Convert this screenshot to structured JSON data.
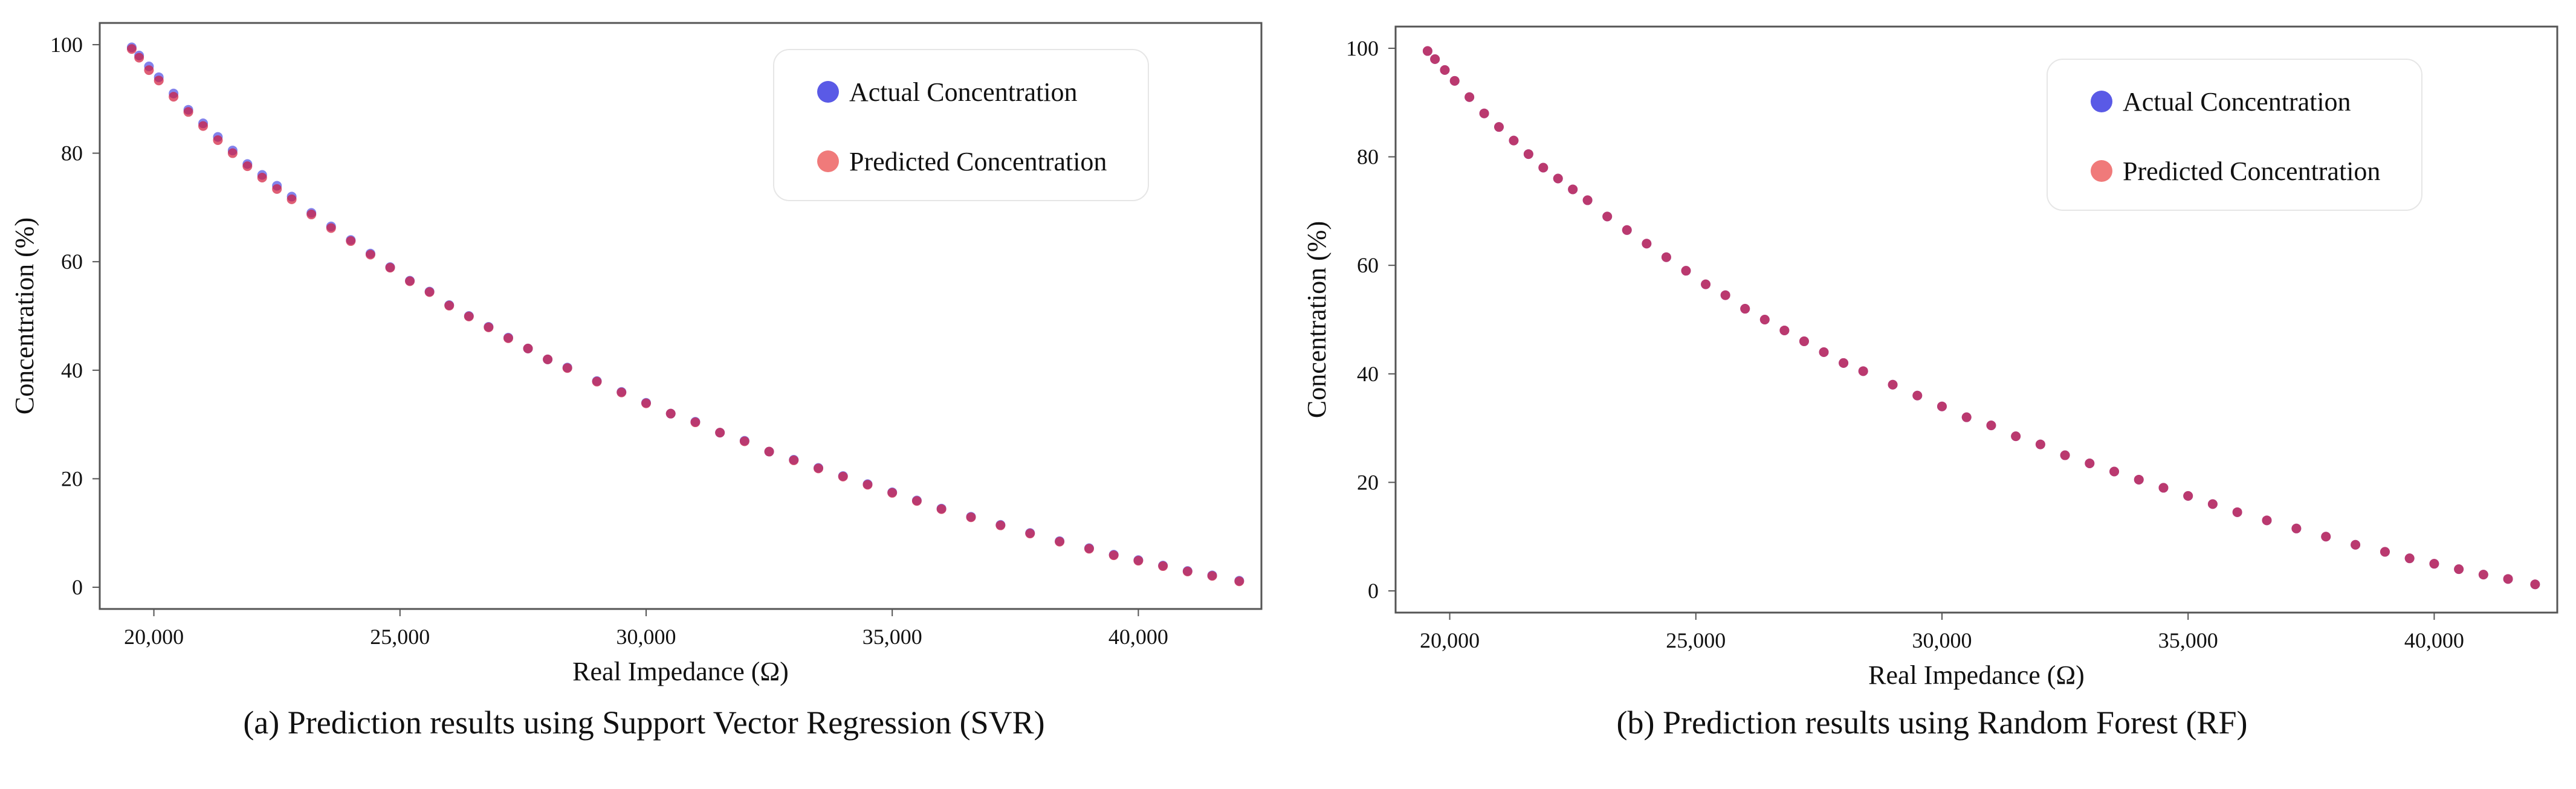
{
  "colors": {
    "actual": "#5a5ae6",
    "predicted": "#f07a7a",
    "overlap": "#d11a3a",
    "frame": "#555555"
  },
  "chart_data": [
    {
      "id": "a",
      "type": "scatter",
      "caption": "(a) Prediction results using Support Vector Regression (SVR)",
      "xlabel": "Real Impedance (Ω)",
      "ylabel": "Concentration (%)",
      "xlim": [
        18900,
        42500
      ],
      "ylim": [
        -4,
        104
      ],
      "xticks": [
        20000,
        25000,
        30000,
        35000,
        40000
      ],
      "xtick_labels": [
        "20,000",
        "25,000",
        "30,000",
        "35,000",
        "40,000"
      ],
      "yticks": [
        0,
        20,
        40,
        60,
        80,
        100
      ],
      "ytick_labels": [
        "0",
        "20",
        "40",
        "60",
        "80",
        "100"
      ],
      "grid": false,
      "legend": {
        "position": "top-right",
        "entries": [
          "Actual Concentration",
          "Predicted Concentration"
        ]
      },
      "series": [
        {
          "name": "Actual Concentration",
          "x": [
            19550,
            19700,
            19900,
            20100,
            20400,
            20700,
            21000,
            21300,
            21600,
            21900,
            22200,
            22500,
            22800,
            23200,
            23600,
            24000,
            24400,
            24800,
            25200,
            25600,
            26000,
            26400,
            26800,
            27200,
            27600,
            28000,
            28400,
            29000,
            29500,
            30000,
            30500,
            31000,
            31500,
            32000,
            32500,
            33000,
            33500,
            34000,
            34500,
            35000,
            35500,
            36000,
            36600,
            37200,
            37800,
            38400,
            39000,
            39500,
            40000,
            40500,
            41000,
            41500,
            42050
          ],
          "values": [
            99.5,
            98,
            96,
            94,
            91,
            88,
            85.5,
            83,
            80.5,
            78,
            76,
            74,
            72,
            69,
            66.5,
            64,
            61.5,
            59,
            56.5,
            54.5,
            52,
            50,
            48,
            46,
            44,
            42,
            40.5,
            38,
            36,
            34,
            32,
            30.5,
            28.5,
            27,
            25,
            23.5,
            22,
            20.5,
            19,
            17.5,
            16,
            14.5,
            13,
            11.5,
            10,
            8.5,
            7.2,
            6,
            5,
            4,
            3,
            2.2,
            1.2
          ]
        },
        {
          "name": "Predicted Concentration",
          "x": [
            19550,
            19700,
            19900,
            20100,
            20400,
            20700,
            21000,
            21300,
            21600,
            21900,
            22200,
            22500,
            22800,
            23200,
            23600,
            24000,
            24400,
            24800,
            25200,
            25600,
            26000,
            26400,
            26800,
            27200,
            27600,
            28000,
            28400,
            29000,
            29500,
            30000,
            30500,
            31000,
            31500,
            32000,
            32500,
            33000,
            33500,
            34000,
            34500,
            35000,
            35500,
            36000,
            36600,
            37200,
            37800,
            38400,
            39000,
            39500,
            40000,
            40500,
            41000,
            41500,
            42050
          ],
          "values": [
            99.2,
            97.6,
            95.3,
            93.4,
            90.4,
            87.6,
            85,
            82.4,
            80,
            77.6,
            75.5,
            73.4,
            71.5,
            68.7,
            66.2,
            63.8,
            61.3,
            58.9,
            56.4,
            54.4,
            51.9,
            49.9,
            47.9,
            45.9,
            44,
            42,
            40.4,
            37.9,
            35.9,
            33.9,
            32,
            30.4,
            28.5,
            26.9,
            25,
            23.4,
            21.9,
            20.4,
            18.9,
            17.4,
            15.9,
            14.4,
            12.9,
            11.4,
            9.9,
            8.4,
            7.1,
            5.9,
            4.9,
            3.9,
            2.9,
            2.1,
            1.1
          ]
        }
      ]
    },
    {
      "id": "b",
      "type": "scatter",
      "caption": "(b) Prediction results using Random Forest (RF)",
      "xlabel": "Real Impedance (Ω)",
      "ylabel": "Concentration (%)",
      "xlim": [
        18900,
        42500
      ],
      "ylim": [
        -4,
        104
      ],
      "xticks": [
        20000,
        25000,
        30000,
        35000,
        40000
      ],
      "xtick_labels": [
        "20,000",
        "25,000",
        "30,000",
        "35,000",
        "40,000"
      ],
      "yticks": [
        0,
        20,
        40,
        60,
        80,
        100
      ],
      "ytick_labels": [
        "0",
        "20",
        "40",
        "60",
        "80",
        "100"
      ],
      "grid": false,
      "legend": {
        "position": "top-right",
        "entries": [
          "Actual Concentration",
          "Predicted Concentration"
        ]
      },
      "series": [
        {
          "name": "Actual Concentration",
          "x": [
            19550,
            19700,
            19900,
            20100,
            20400,
            20700,
            21000,
            21300,
            21600,
            21900,
            22200,
            22500,
            22800,
            23200,
            23600,
            24000,
            24400,
            24800,
            25200,
            25600,
            26000,
            26400,
            26800,
            27200,
            27600,
            28000,
            28400,
            29000,
            29500,
            30000,
            30500,
            31000,
            31500,
            32000,
            32500,
            33000,
            33500,
            34000,
            34500,
            35000,
            35500,
            36000,
            36600,
            37200,
            37800,
            38400,
            39000,
            39500,
            40000,
            40500,
            41000,
            41500,
            42050
          ],
          "values": [
            99.5,
            98,
            96,
            94,
            91,
            88,
            85.5,
            83,
            80.5,
            78,
            76,
            74,
            72,
            69,
            66.5,
            64,
            61.5,
            59,
            56.5,
            54.5,
            52,
            50,
            48,
            46,
            44,
            42,
            40.5,
            38,
            36,
            34,
            32,
            30.5,
            28.5,
            27,
            25,
            23.5,
            22,
            20.5,
            19,
            17.5,
            16,
            14.5,
            13,
            11.5,
            10,
            8.5,
            7.2,
            6,
            5,
            4,
            3,
            2.2,
            1.2
          ]
        },
        {
          "name": "Predicted Concentration",
          "x": [
            19550,
            19700,
            19900,
            20100,
            20400,
            20700,
            21000,
            21300,
            21600,
            21900,
            22200,
            22500,
            22800,
            23200,
            23600,
            24000,
            24400,
            24800,
            25200,
            25600,
            26000,
            26400,
            26800,
            27200,
            27600,
            28000,
            28400,
            29000,
            29500,
            30000,
            30500,
            31000,
            31500,
            32000,
            32500,
            33000,
            33500,
            34000,
            34500,
            35000,
            35500,
            36000,
            36600,
            37200,
            37800,
            38400,
            39000,
            39500,
            40000,
            40500,
            41000,
            41500,
            42050
          ],
          "values": [
            99.5,
            98,
            96,
            94,
            91,
            88,
            85.5,
            83,
            80.5,
            78,
            76,
            74,
            72,
            69,
            66.5,
            64,
            61.5,
            59,
            56.5,
            54.5,
            52,
            50,
            48,
            46,
            44,
            42,
            40.5,
            38,
            36,
            34,
            32,
            30.5,
            28.5,
            27,
            25,
            23.5,
            22,
            20.5,
            19,
            17.5,
            16,
            14.5,
            13,
            11.5,
            10,
            8.5,
            7.2,
            6,
            5,
            4,
            3,
            2.2,
            1.2
          ]
        }
      ]
    }
  ]
}
